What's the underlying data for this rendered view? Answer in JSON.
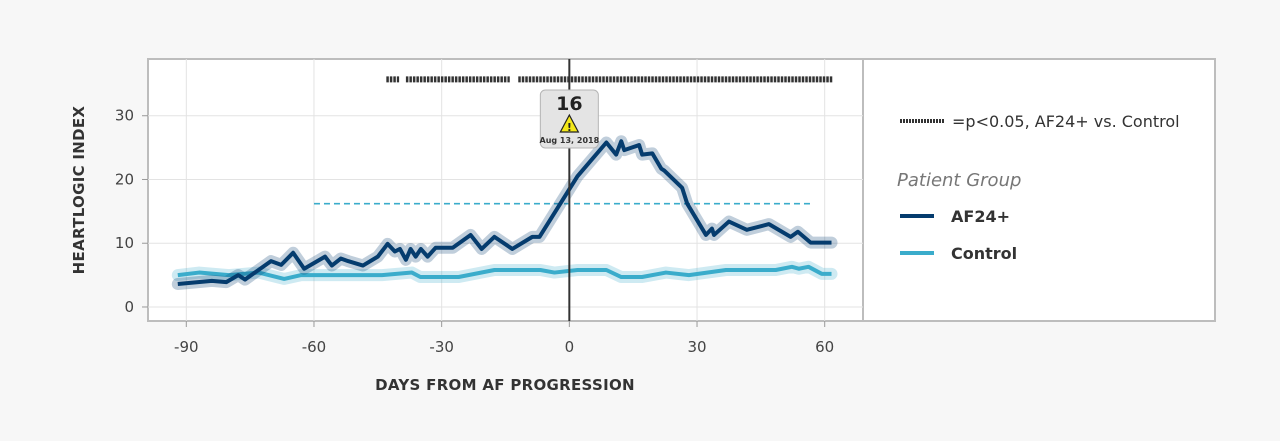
{
  "chart_data": {
    "type": "line",
    "xlabel": "DAYS FROM AF PROGRESSION",
    "ylabel": "HEARTLOGIC INDEX",
    "xlim": [
      -99,
      69
    ],
    "ylim": [
      -2.2,
      38.9
    ],
    "xticks": [
      -90,
      -60,
      -30,
      0,
      30,
      60
    ],
    "yticks": [
      0,
      10,
      20,
      30
    ],
    "grid": true,
    "legend_position": "right",
    "colors": {
      "AF24+": "#053c6e",
      "Control": "#3aaccb",
      "threshold": "#3aaccb",
      "significance": "#333333"
    },
    "series": [
      {
        "name": "AF24+",
        "x": [
          -92,
          -84,
          -80.6,
          -77.8,
          -76.2,
          -70.1,
          -67.7,
          -64.9,
          -62.3,
          -57.4,
          -55.8,
          -53.7,
          -52,
          -48.5,
          -45,
          -42.7,
          -41,
          -39.8,
          -38.4,
          -37.3,
          -36.1,
          -34.9,
          -33.3,
          -31.4,
          -27.4,
          -23.2,
          -20.6,
          -17.6,
          -13.4,
          -8.7,
          -7,
          1.9,
          8.7,
          11,
          12.2,
          12.9,
          16.4,
          17.1,
          19.5,
          21.6,
          22.3,
          26.5,
          27.7,
          32.1,
          33.5,
          34,
          37.5,
          41.7,
          46.9,
          52,
          53.7,
          56.7,
          61.6
        ],
        "y": [
          3.6,
          4.1,
          3.9,
          5.0,
          4.3,
          7.2,
          6.6,
          8.5,
          6.0,
          7.9,
          6.5,
          7.6,
          7.2,
          6.5,
          7.9,
          9.9,
          8.7,
          9.1,
          7.4,
          9.1,
          7.9,
          9.1,
          7.9,
          9.3,
          9.3,
          11.3,
          9.1,
          11.0,
          9.1,
          11.0,
          11.0,
          20.5,
          25.8,
          23.9,
          26.0,
          24.6,
          25.4,
          23.9,
          24.1,
          21.7,
          21.4,
          18.7,
          16.2,
          11.3,
          12.3,
          11.3,
          13.4,
          12.1,
          13.0,
          11.0,
          11.8,
          10.1,
          10.1
        ]
      },
      {
        "name": "Control",
        "x": [
          -92,
          -87,
          -80,
          -73,
          -67,
          -63,
          -44,
          -37,
          -35,
          -26,
          -17.6,
          -6.8,
          -3.5,
          1.9,
          8.7,
          12.2,
          17.1,
          22.7,
          28.1,
          36.8,
          48.5,
          52.3,
          53.9,
          56.2,
          59.3,
          61.6
        ],
        "y": [
          5.0,
          5.4,
          5.0,
          5.4,
          4.4,
          5.0,
          5.0,
          5.4,
          4.7,
          4.7,
          5.8,
          5.8,
          5.4,
          5.8,
          5.8,
          4.7,
          4.7,
          5.4,
          5.0,
          5.8,
          5.8,
          6.3,
          6.0,
          6.3,
          5.2,
          5.2
        ]
      }
    ],
    "threshold": {
      "y": 16.2,
      "x_range": [
        -60,
        56.7
      ]
    },
    "significance_ranges": [
      [
        -43,
        -40
      ],
      [
        -38.4,
        -14
      ],
      [
        -12,
        62
      ]
    ],
    "significance_y": 35.7,
    "event": {
      "x": 0,
      "value": "16",
      "date": "Aug 13, 2018",
      "icon": "warning-icon"
    },
    "legend": {
      "significance_label": "=p<0.05, AF24+ vs. Control",
      "title": "Patient Group",
      "entries": [
        "AF24+",
        "Control"
      ]
    }
  }
}
